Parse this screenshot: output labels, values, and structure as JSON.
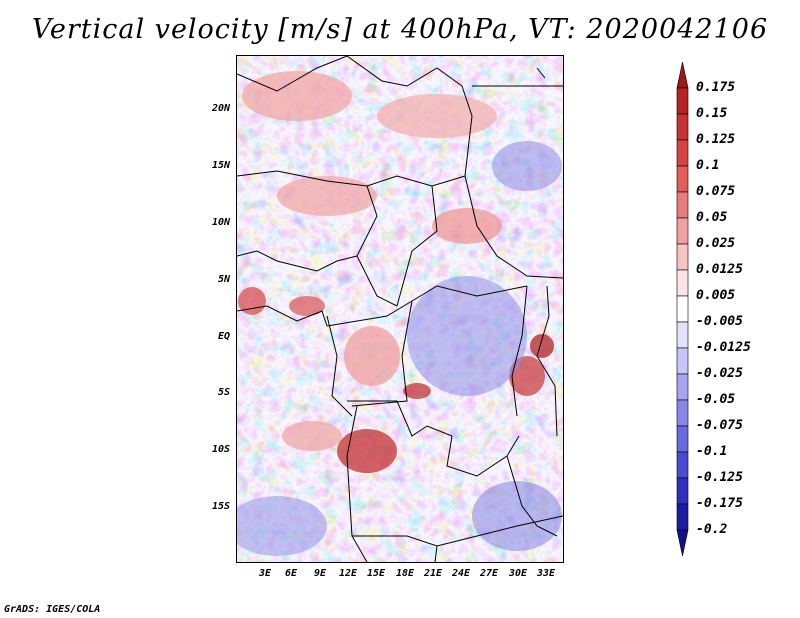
{
  "title": "Vertical velocity [m/s] at 400hPa, VT: 2020042106",
  "credit": "GrADS: IGES/COLA",
  "lat_labels": [
    "20N",
    "15N",
    "10N",
    "5N",
    "EQ",
    "5S",
    "10S",
    "15S"
  ],
  "lon_labels": [
    "3E",
    "6E",
    "9E",
    "12E",
    "15E",
    "18E",
    "21E",
    "24E",
    "27E",
    "30E",
    "33E"
  ],
  "colorbar": {
    "labels": [
      "0.175",
      "0.15",
      "0.125",
      "0.1",
      "0.075",
      "0.05",
      "0.025",
      "0.0125",
      "0.005",
      "-0.005",
      "-0.0125",
      "-0.025",
      "-0.05",
      "-0.075",
      "-0.1",
      "-0.125",
      "-0.175",
      "-0.2"
    ],
    "colors": [
      "#a01515",
      "#b72222",
      "#c83232",
      "#d84444",
      "#e35c5c",
      "#ec7c7c",
      "#f4a0a0",
      "#f9c3c3",
      "#fde4e4",
      "#ffffff",
      "#e2e2fd",
      "#c6c6f8",
      "#a5a5f0",
      "#8888e8",
      "#6a6ae0",
      "#4a4ad3",
      "#2f2fc0",
      "#1c1ca4",
      "#12128a"
    ]
  },
  "map_field": {
    "variable": "Vertical velocity",
    "level": "400hPa",
    "valid_time": "2020042106"
  }
}
